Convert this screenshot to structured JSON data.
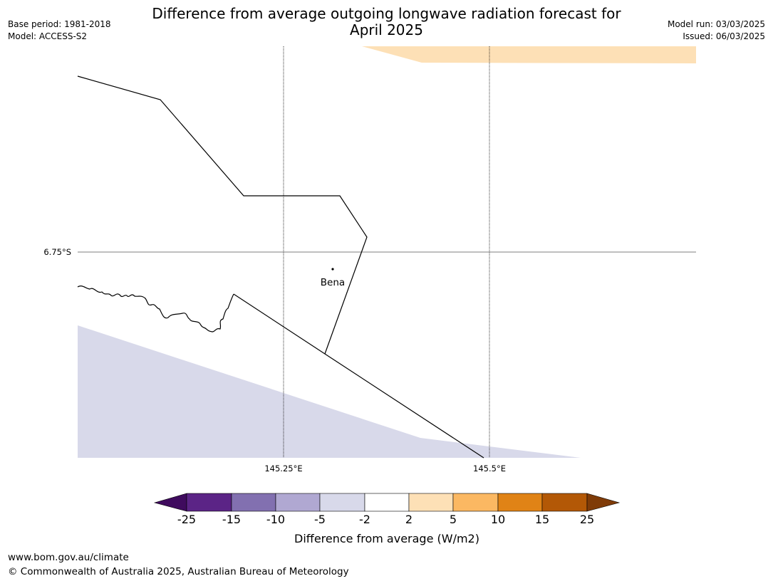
{
  "header": {
    "title_line1": "Difference from average outgoing longwave radiation forecast for",
    "title_line2": "April 2025",
    "base_period": "Base period: 1981-2018",
    "model": "Model: ACCESS-S2",
    "model_run": "Model run: 03/03/2025",
    "issued": "Issued: 06/03/2025"
  },
  "map": {
    "place_label": "Bena",
    "lat_label": "6.75°S",
    "lon_labels": [
      "145.25°E",
      "145.5°E"
    ]
  },
  "colorbar": {
    "label": "Difference from average (W/m2)",
    "ticks": [
      "-25",
      "-15",
      "-10",
      "-5",
      "-2",
      "2",
      "5",
      "10",
      "15",
      "25"
    ],
    "colors": [
      "#3f0b5e",
      "#5b2486",
      "#8270b0",
      "#b0a8d2",
      "#d8d9ea",
      "#ffffff",
      "#fde0b6",
      "#fbb862",
      "#e08316",
      "#b35806",
      "#7f3b08"
    ]
  },
  "footer": {
    "url": "www.bom.gov.au/climate",
    "copyright": "© Commonwealth of Australia 2025, Australian Bureau of Meteorology"
  }
}
